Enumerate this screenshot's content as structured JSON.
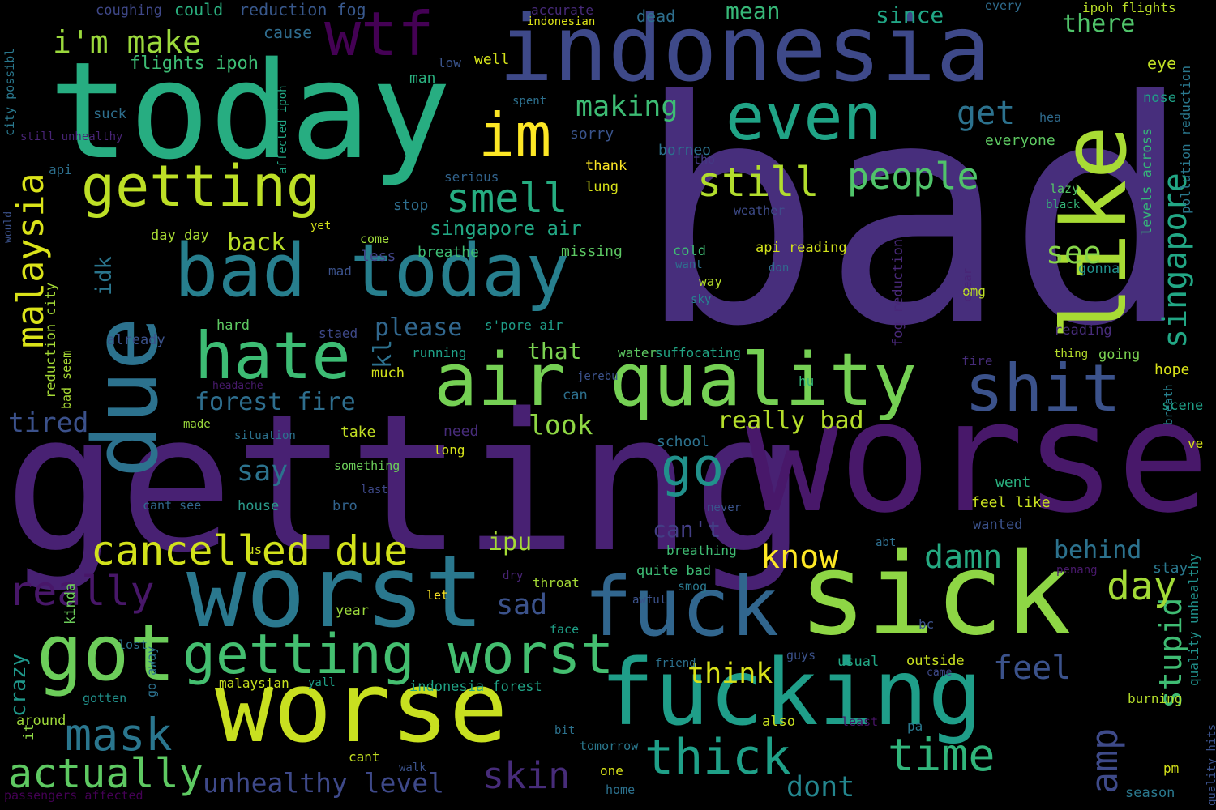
{
  "words": [
    {
      "text": "bad",
      "color": "#472e7c"
    },
    {
      "text": "getting",
      "color": "#482173"
    },
    {
      "text": "worse",
      "color": "#48186a"
    },
    {
      "text": "today",
      "color": "#27ad81"
    },
    {
      "text": "indonesia",
      "color": "#3e4989"
    },
    {
      "text": "like",
      "color": "#a8db34"
    },
    {
      "text": "sick",
      "color": "#8ed645"
    },
    {
      "text": "worse",
      "color": "#c8e020"
    },
    {
      "text": "worst",
      "color": "#2a788e"
    },
    {
      "text": "fucking",
      "color": "#1f9e89"
    },
    {
      "text": "fuck",
      "color": "#31668e"
    },
    {
      "text": "due",
      "color": "#2c728e"
    },
    {
      "text": "got",
      "color": "#6ccd5a"
    },
    {
      "text": "air quality",
      "color": "#75d054"
    },
    {
      "text": "shit",
      "color": "#3b528b"
    },
    {
      "text": "bad today",
      "color": "#277f8e"
    },
    {
      "text": "hate",
      "color": "#3dbc74"
    },
    {
      "text": "even",
      "color": "#20a486"
    },
    {
      "text": "im",
      "color": "#fde725"
    },
    {
      "text": "wtf",
      "color": "#440154"
    },
    {
      "text": "getting",
      "color": "#bddf26"
    },
    {
      "text": "getting worst",
      "color": "#44bf70"
    },
    {
      "text": "cancelled due",
      "color": "#d2e21b"
    },
    {
      "text": "go",
      "color": "#21918c"
    },
    {
      "text": "mask",
      "color": "#2a768e"
    },
    {
      "text": "thick",
      "color": "#1fa088"
    },
    {
      "text": "time",
      "color": "#31b57b"
    },
    {
      "text": "actually",
      "color": "#5ec962"
    },
    {
      "text": "skin",
      "color": "#472c7a"
    },
    {
      "text": "really",
      "color": "#481769"
    },
    {
      "text": "smell",
      "color": "#26ad81"
    },
    {
      "text": "still",
      "color": "#b2dd2d"
    },
    {
      "text": "people",
      "color": "#50c46a"
    },
    {
      "text": "singapore",
      "color": "#22a785"
    },
    {
      "text": "malaysia",
      "color": "#dae319"
    },
    {
      "text": "know",
      "color": "#fde725"
    },
    {
      "text": "damn",
      "color": "#25ab82"
    },
    {
      "text": "stupid",
      "color": "#3fbc73"
    },
    {
      "text": "amp",
      "color": "#3e4a89"
    },
    {
      "text": "day",
      "color": "#a2da37"
    },
    {
      "text": "feel",
      "color": "#3b528b"
    },
    {
      "text": "think",
      "color": "#d8e219"
    },
    {
      "text": "unhealthy level",
      "color": "#3e4989"
    },
    {
      "text": "dont",
      "color": "#24868e"
    },
    {
      "text": "making",
      "color": "#3dbc74"
    },
    {
      "text": "i'm make",
      "color": "#9bd93c"
    },
    {
      "text": "get",
      "color": "#2c728e"
    },
    {
      "text": "see",
      "color": "#86d549"
    },
    {
      "text": "forest fire",
      "color": "#2e6e8e"
    },
    {
      "text": "really bad",
      "color": "#b5de2b"
    },
    {
      "text": "look",
      "color": "#8fd744"
    },
    {
      "text": "say",
      "color": "#2c738e"
    },
    {
      "text": "sad",
      "color": "#3b528b"
    },
    {
      "text": "ipu",
      "color": "#a5db36"
    },
    {
      "text": "behind",
      "color": "#2c728e"
    },
    {
      "text": "tired",
      "color": "#3b518b"
    },
    {
      "text": "please",
      "color": "#31678e"
    },
    {
      "text": "back",
      "color": "#bade28"
    },
    {
      "text": "kl",
      "color": "#2d718e"
    },
    {
      "text": "idk",
      "color": "#2a768e"
    },
    {
      "text": "singapore air",
      "color": "#22a884"
    },
    {
      "text": "crazy",
      "color": "#1f988b"
    },
    {
      "text": "can't",
      "color": "#433e85"
    },
    {
      "text": "that",
      "color": "#7ad151"
    },
    {
      "text": "since",
      "color": "#21a685"
    },
    {
      "text": "there",
      "color": "#50c46a"
    },
    {
      "text": "mean",
      "color": "#37b878"
    },
    {
      "text": "could",
      "color": "#2ab07f"
    },
    {
      "text": "reduction fog",
      "color": "#38588c"
    },
    {
      "text": "coughing",
      "color": "#3f4889"
    },
    {
      "text": "cause",
      "color": "#2f6c8e"
    },
    {
      "text": "flights ipoh",
      "color": "#3dbc74"
    },
    {
      "text": "accurate",
      "color": "#472a7a"
    },
    {
      "text": "indonesian",
      "color": "#dde318"
    },
    {
      "text": "dead",
      "color": "#2e6f8e"
    },
    {
      "text": "every",
      "color": "#2f6c8e"
    },
    {
      "text": "ipoh flights",
      "color": "#bade28"
    },
    {
      "text": "eye",
      "color": "#c0df25"
    },
    {
      "text": "nose",
      "color": "#1fa187"
    },
    {
      "text": "hea",
      "color": "#2f6b8e"
    },
    {
      "text": "low",
      "color": "#3a548c"
    },
    {
      "text": "well",
      "color": "#d5e21a"
    },
    {
      "text": "man",
      "color": "#2ab07f"
    },
    {
      "text": "spent",
      "color": "#2d708e"
    },
    {
      "text": "suck",
      "color": "#2e6f8e"
    },
    {
      "text": "sorry",
      "color": "#3a548c"
    },
    {
      "text": "borneo",
      "color": "#2c718e"
    },
    {
      "text": "tho",
      "color": "#443983"
    },
    {
      "text": "everyone",
      "color": "#5ec962"
    },
    {
      "text": "thank",
      "color": "#fde725"
    },
    {
      "text": "lung",
      "color": "#d8e219"
    },
    {
      "text": "api",
      "color": "#2d708e"
    },
    {
      "text": "serious",
      "color": "#32648e"
    },
    {
      "text": "stop",
      "color": "#2e6e8e"
    },
    {
      "text": "weather",
      "color": "#3e4c8a"
    },
    {
      "text": "lazy",
      "color": "#54c568"
    },
    {
      "text": "black",
      "color": "#35b779"
    },
    {
      "text": "day day",
      "color": "#a8db34"
    },
    {
      "text": "yet",
      "color": "#d5e21a"
    },
    {
      "text": "come",
      "color": "#9fda3a"
    },
    {
      "text": "breathe",
      "color": "#3dbc74"
    },
    {
      "text": "missing",
      "color": "#5cc863"
    },
    {
      "text": "cold",
      "color": "#3fbc73"
    },
    {
      "text": "api reading",
      "color": "#d2e21b"
    },
    {
      "text": "want",
      "color": "#2d708e"
    },
    {
      "text": "don",
      "color": "#2f6c8e"
    },
    {
      "text": "gonna",
      "color": "#21918c"
    },
    {
      "text": "less",
      "color": "#414487"
    },
    {
      "text": "mad",
      "color": "#3b528b"
    },
    {
      "text": "way",
      "color": "#b5de2b"
    },
    {
      "text": "omg",
      "color": "#bddf26"
    },
    {
      "text": "sky",
      "color": "#27808e"
    },
    {
      "text": "hard",
      "color": "#5ec962"
    },
    {
      "text": "s'pore air",
      "color": "#1f9e89"
    },
    {
      "text": "staed",
      "color": "#3e4989"
    },
    {
      "text": "already",
      "color": "#3b528b"
    },
    {
      "text": "running",
      "color": "#1fa188"
    },
    {
      "text": "water",
      "color": "#5ec962"
    },
    {
      "text": "suffocating",
      "color": "#21a685"
    },
    {
      "text": "reading",
      "color": "#472c7a"
    },
    {
      "text": "thing",
      "color": "#b5de2b"
    },
    {
      "text": "going",
      "color": "#7ad151"
    },
    {
      "text": "fire",
      "color": "#472c7a"
    },
    {
      "text": "hope",
      "color": "#dae319"
    },
    {
      "text": "much",
      "color": "#d2e21b"
    },
    {
      "text": "headache",
      "color": "#481a6c"
    },
    {
      "text": "jerebu",
      "color": "#3b528b"
    },
    {
      "text": "can",
      "color": "#2d708e"
    },
    {
      "text": "hu",
      "color": "#35b779"
    },
    {
      "text": "scene",
      "color": "#1fa088"
    },
    {
      "text": "breath",
      "color": "#27808e"
    },
    {
      "text": "made",
      "color": "#9bd93c"
    },
    {
      "text": "situation",
      "color": "#2c728e"
    },
    {
      "text": "take",
      "color": "#c2df23"
    },
    {
      "text": "need",
      "color": "#472c7a"
    },
    {
      "text": "long",
      "color": "#d5e21a"
    },
    {
      "text": "school",
      "color": "#2c728e"
    },
    {
      "text": "something",
      "color": "#6ccd5a"
    },
    {
      "text": "ve",
      "color": "#d8e219"
    },
    {
      "text": "last",
      "color": "#3e4989"
    },
    {
      "text": "went",
      "color": "#2ab07f"
    },
    {
      "text": "cant see",
      "color": "#31688e"
    },
    {
      "text": "house",
      "color": "#2a9a8a"
    },
    {
      "text": "bro",
      "color": "#32648e"
    },
    {
      "text": "never",
      "color": "#3a548c"
    },
    {
      "text": "feel like",
      "color": "#c8e020"
    },
    {
      "text": "wanted",
      "color": "#3b528b"
    },
    {
      "text": "us",
      "color": "#d0e11c"
    },
    {
      "text": "abt",
      "color": "#2e6e8e"
    },
    {
      "text": "breathing",
      "color": "#3fbc73"
    },
    {
      "text": "quite bad",
      "color": "#3dbc74"
    },
    {
      "text": "smog",
      "color": "#2a788e"
    },
    {
      "text": "penang",
      "color": "#48196b"
    },
    {
      "text": "stay",
      "color": "#2a788e"
    },
    {
      "text": "throat",
      "color": "#a5db36"
    },
    {
      "text": "let",
      "color": "#fde725"
    },
    {
      "text": "dry",
      "color": "#482475"
    },
    {
      "text": "awful",
      "color": "#3b528b"
    },
    {
      "text": "kinda",
      "color": "#6ccd5a"
    },
    {
      "text": "year",
      "color": "#9bd93c"
    },
    {
      "text": "lost",
      "color": "#2c728e"
    },
    {
      "text": "face",
      "color": "#1fa188"
    },
    {
      "text": "bc",
      "color": "#3b528b"
    },
    {
      "text": "malaysian",
      "color": "#c8e020"
    },
    {
      "text": "yall",
      "color": "#1fa188"
    },
    {
      "text": "indonesia forest",
      "color": "#20a386"
    },
    {
      "text": "friend",
      "color": "#2c718e"
    },
    {
      "text": "guys",
      "color": "#3b528b"
    },
    {
      "text": "came",
      "color": "#3e4989"
    },
    {
      "text": "usual",
      "color": "#22a785"
    },
    {
      "text": "outside",
      "color": "#c8e020"
    },
    {
      "text": "burning",
      "color": "#b5de2b"
    },
    {
      "text": "gotten",
      "color": "#21918c"
    },
    {
      "text": "go away",
      "color": "#2c718e"
    },
    {
      "text": "around",
      "color": "#9fda3a"
    },
    {
      "text": "cant",
      "color": "#c2df23"
    },
    {
      "text": "bit",
      "color": "#2c728e"
    },
    {
      "text": "it",
      "color": "#8fd744"
    },
    {
      "text": "also",
      "color": "#c8e020"
    },
    {
      "text": "least",
      "color": "#471365"
    },
    {
      "text": "pa",
      "color": "#2a788e"
    },
    {
      "text": "one",
      "color": "#d8e219"
    },
    {
      "text": "walk",
      "color": "#3b528b"
    },
    {
      "text": "home",
      "color": "#2c718e"
    },
    {
      "text": "pm",
      "color": "#d5e21a"
    },
    {
      "text": "season",
      "color": "#2a788e"
    },
    {
      "text": "tomorrow",
      "color": "#2a788e"
    },
    {
      "text": "passengers affected",
      "color": "#440154"
    },
    {
      "text": "city possibl",
      "color": "#2a788e"
    },
    {
      "text": "still unhealthy",
      "color": "#482475"
    },
    {
      "text": "would",
      "color": "#3b528b"
    },
    {
      "text": "affected ipoh",
      "color": "#22a785"
    },
    {
      "text": "reduction city",
      "color": "#a5db36"
    },
    {
      "text": "bad seem",
      "color": "#a8db34"
    },
    {
      "text": "fog reduction",
      "color": "#482878"
    },
    {
      "text": "clear",
      "color": "#482475"
    },
    {
      "text": "levels across",
      "color": "#35b779"
    },
    {
      "text": "pollution reduction",
      "color": "#2a788e"
    },
    {
      "text": "quality unhealthy",
      "color": "#21918c"
    },
    {
      "text": "quality hits",
      "color": "#3b528b"
    }
  ]
}
